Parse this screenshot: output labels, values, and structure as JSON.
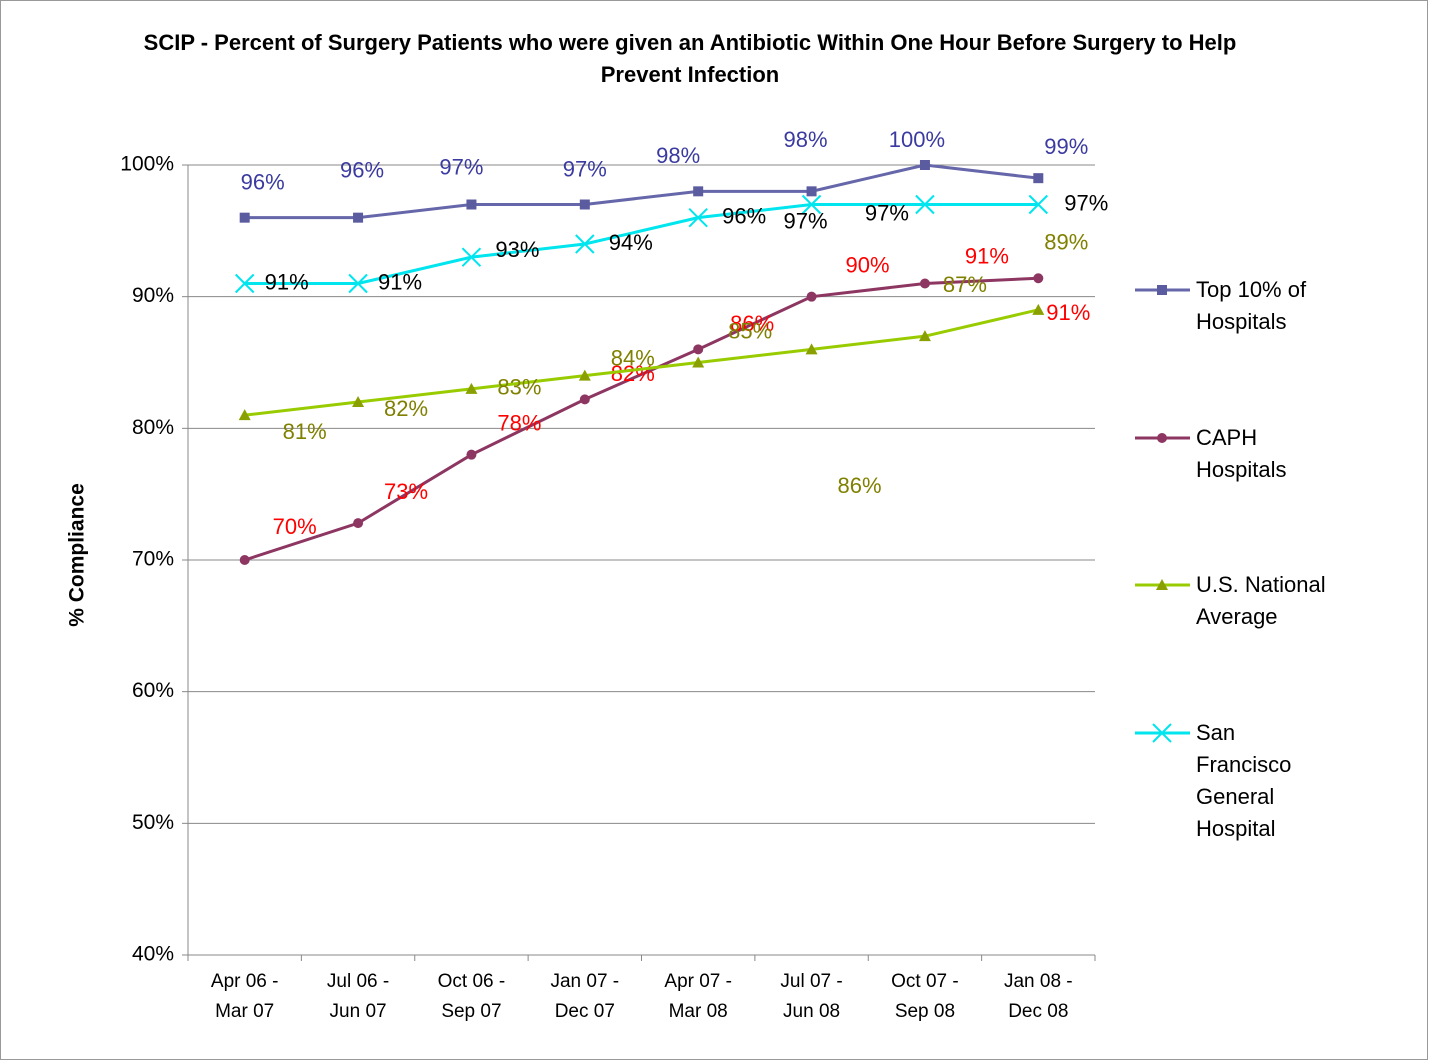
{
  "chart_data": {
    "type": "line",
    "title": "SCIP - Percent of Surgery Patients who were given an Antibiotic Within One Hour Before Surgery to Help Prevent Infection",
    "y_label": "% Compliance",
    "categories": [
      "Apr 06 - Mar 07",
      "Jul 06 - Jun 07",
      "Oct 06 - Sep 07",
      "Jan 07 - Dec 07",
      "Apr 07 - Mar 08",
      "Jul 07 - Jun 08",
      "Oct 07 - Sep 08",
      "Jan 08 - Dec 08"
    ],
    "ylim": [
      40,
      100
    ],
    "yticks": [
      {
        "value": 40,
        "label": "40%"
      },
      {
        "value": 50,
        "label": "50%"
      },
      {
        "value": 60,
        "label": "60%"
      },
      {
        "value": 70,
        "label": "70%"
      },
      {
        "value": 80,
        "label": "80%"
      },
      {
        "value": 90,
        "label": "90%"
      },
      {
        "value": 100,
        "label": "100%"
      }
    ],
    "grid": true,
    "legend": "right",
    "series": [
      {
        "name": "Top 10% of Hospitals",
        "color": "#6666aa",
        "marker": "square",
        "label_color": "#3a3aa0",
        "values": [
          96,
          96,
          97,
          97,
          98,
          98,
          100,
          99
        ],
        "value_labels": [
          "96%",
          "96%",
          "97%",
          "97%",
          "98%",
          "98%",
          "100%",
          "99%"
        ]
      },
      {
        "name": "CAPH Hospitals",
        "color": "#8e3662",
        "marker": "circle",
        "label_color": "#ff0000",
        "values": [
          70,
          72.8,
          78,
          82.2,
          86,
          90,
          91,
          91.4
        ],
        "value_labels": [
          "70%",
          "73%",
          "78%",
          "82%",
          "86%",
          "90%",
          "91%",
          "91%"
        ]
      },
      {
        "name": "U.S. National Average",
        "color": "#99cc00",
        "marker": "triangle",
        "label_color": "#808000",
        "values": [
          81,
          82,
          83,
          84,
          85,
          86,
          87,
          89
        ],
        "value_labels": [
          "81%",
          "82%",
          "83%",
          "84%",
          "85%",
          "86%",
          "87%",
          "89%"
        ]
      },
      {
        "name": "San Francisco General Hospital",
        "color": "#00e5ee",
        "marker": "x",
        "label_color": "#000000",
        "values": [
          91,
          91,
          93,
          94,
          96,
          97,
          97,
          97
        ],
        "value_labels": [
          "91%",
          "91%",
          "93%",
          "94%",
          "96%",
          "97%",
          "97%",
          "97%"
        ]
      }
    ]
  }
}
